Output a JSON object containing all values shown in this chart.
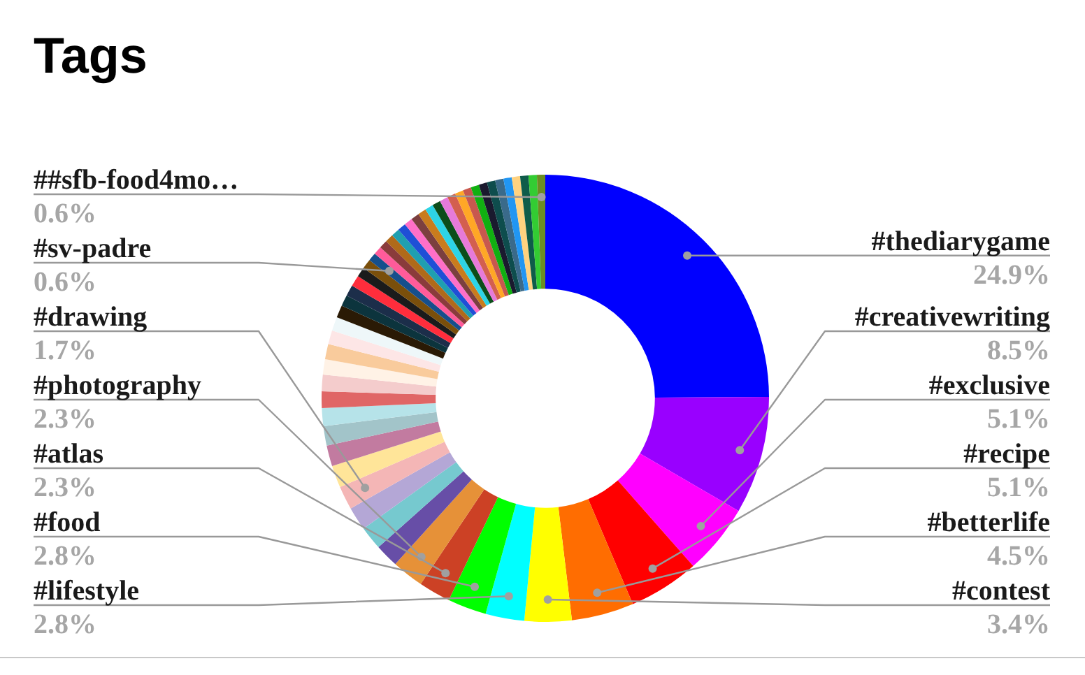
{
  "chart_data": {
    "type": "donut",
    "title": "Tags",
    "categories": [
      "#thediarygame",
      "#creativewriting",
      "#exclusive",
      "#recipe",
      "#betterlife",
      "#contest",
      "#lifestyle",
      "#food",
      "#atlas",
      "#photography",
      null,
      null,
      null,
      "#drawing",
      null,
      null,
      null,
      null,
      null,
      null,
      null,
      null,
      null,
      null,
      null,
      null,
      null,
      null,
      null,
      null,
      "#sv-padre",
      null,
      null,
      null,
      null,
      null,
      null,
      null,
      null,
      null,
      null,
      null,
      null,
      null,
      null,
      null,
      null,
      null,
      null,
      null,
      null,
      null,
      null,
      "##sfb-food4mo…"
    ],
    "values": [
      24.9,
      8.5,
      5.1,
      5.1,
      4.5,
      3.4,
      2.8,
      2.8,
      2.3,
      2.3,
      1.7,
      1.7,
      1.7,
      1.7,
      1.6,
      1.5,
      1.4,
      1.3,
      1.2,
      1.2,
      1.1,
      1.1,
      1.0,
      1.0,
      0.9,
      0.8,
      0.8,
      0.8,
      0.7,
      0.7,
      0.6,
      0.6,
      0.6,
      0.6,
      0.6,
      0.6,
      0.6,
      0.6,
      0.6,
      0.6,
      0.6,
      0.6,
      0.6,
      0.6,
      0.6,
      0.6,
      0.6,
      0.6,
      0.6,
      0.6,
      0.6,
      0.6,
      0.6,
      0.6
    ],
    "value_labels": [
      "24.9%",
      "8.5%",
      "5.1%",
      "5.1%",
      "4.5%",
      "3.4%",
      "2.8%",
      "2.8%",
      "2.3%",
      "2.3%",
      null,
      null,
      null,
      "1.7%",
      null,
      null,
      null,
      null,
      null,
      null,
      null,
      null,
      null,
      null,
      null,
      null,
      null,
      null,
      null,
      null,
      "0.6%",
      null,
      null,
      null,
      null,
      null,
      null,
      null,
      null,
      null,
      null,
      null,
      null,
      null,
      null,
      null,
      null,
      null,
      null,
      null,
      null,
      null,
      null,
      "0.6%"
    ],
    "colors": [
      "#0000ff",
      "#9900ff",
      "#ff00ff",
      "#ff0000",
      "#ff6d01",
      "#ffff00",
      "#00ffff",
      "#00ff00",
      "#cc4125",
      "#e69138",
      "#674ea7",
      "#76c9cf",
      "#b4a7d6",
      "#f4b6b6",
      "#ffe599",
      "#c27ba0",
      "#a2c4c9",
      "#b6e3e9",
      "#e06666",
      "#f4cccc",
      "#fff2e6",
      "#f9cb9c",
      "#fde6e6",
      "#eef7f9",
      "#2a1a05",
      "#0c343d",
      "#1c2e4a",
      "#ff2d3c",
      "#1b1b1b",
      "#7a4f0b",
      "#164f8c",
      "#ff5b9a",
      "#8a3b3b",
      "#b06a1a",
      "#1f9fb0",
      "#1f4fd6",
      "#ff6fc8",
      "#7b3f3f",
      "#c97c1d",
      "#2dd4e6",
      "#0b4d1a",
      "#e67ad9",
      "#d35f4f",
      "#ffa726",
      "#c8584e",
      "#11b011",
      "#1a1a2e",
      "#0e4d4d",
      "#3a6a8a",
      "#2196f3",
      "#ffd27f",
      "#0f5c4a",
      "#33cc33",
      "#6b8e23"
    ]
  }
}
